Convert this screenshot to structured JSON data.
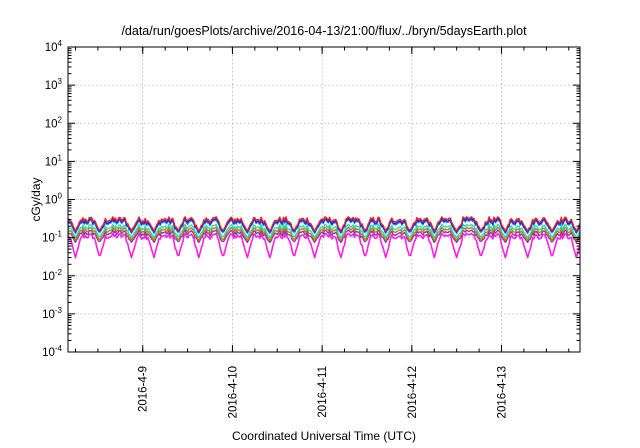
{
  "chart_data": {
    "type": "line",
    "title": "/data/run/goesPlots/archive/2016-04-13/21:00/flux/../bryn/5daysEarth.plot",
    "xlabel": "Coordinated Universal Time (UTC)",
    "ylabel": "cGy/day",
    "yscale": "log",
    "ylim": [
      0.0001,
      10000
    ],
    "xlim": [
      "2016-04-08 04:00",
      "2016-04-13 21:00"
    ],
    "grid": true,
    "ytick_labels": [
      {
        "base": "10",
        "exp": "-4",
        "value": 0.0001
      },
      {
        "base": "10",
        "exp": "-3",
        "value": 0.001
      },
      {
        "base": "10",
        "exp": "-2",
        "value": 0.01
      },
      {
        "base": "10",
        "exp": "-1",
        "value": 0.1
      },
      {
        "base": "10",
        "exp": "0",
        "value": 1
      },
      {
        "base": "10",
        "exp": "1",
        "value": 10
      },
      {
        "base": "10",
        "exp": "2",
        "value": 100
      },
      {
        "base": "10",
        "exp": "3",
        "value": 1000
      },
      {
        "base": "10",
        "exp": "4",
        "value": 10000
      }
    ],
    "xtick_labels": [
      {
        "label": "2016-4-9",
        "date": "2016-04-09 00:00"
      },
      {
        "label": "2016-4-10",
        "date": "2016-04-10 00:00"
      },
      {
        "label": "2016-4-11",
        "date": "2016-04-11 00:00"
      },
      {
        "label": "2016-4-12",
        "date": "2016-04-12 00:00"
      },
      {
        "label": "2016-4-13",
        "date": "2016-04-13 00:00"
      }
    ],
    "series": [
      {
        "color": "#e8202a",
        "base_value": 0.3,
        "dip_value": 0.15
      },
      {
        "color": "#2020e0",
        "base_value": 0.27,
        "dip_value": 0.14
      },
      {
        "color": "#1a98e6",
        "base_value": 0.25,
        "dip_value": 0.13
      },
      {
        "color": "#30d8a8",
        "base_value": 0.19,
        "dip_value": 0.1
      },
      {
        "color": "#c07820",
        "base_value": 0.16,
        "dip_value": 0.085
      },
      {
        "color": "#8040a0",
        "base_value": 0.135,
        "dip_value": 0.075
      },
      {
        "color": "#ff1ee6",
        "base_value": 0.11,
        "dip_value": 0.03
      }
    ],
    "dip_dates": [
      "2016-04-08 06:00",
      "2016-04-08 12:30",
      "2016-04-08 21:00",
      "2016-04-09 03:00",
      "2016-04-09 09:30",
      "2016-04-09 15:00",
      "2016-04-09 21:30",
      "2016-04-10 04:00",
      "2016-04-10 10:00",
      "2016-04-10 16:30",
      "2016-04-10 22:00",
      "2016-04-11 05:00",
      "2016-04-11 11:30",
      "2016-04-11 17:00",
      "2016-04-11 23:30",
      "2016-04-12 06:00",
      "2016-04-12 12:00",
      "2016-04-12 18:30",
      "2016-04-13 01:00",
      "2016-04-13 07:00",
      "2016-04-13 13:30",
      "2016-04-13 20:00"
    ]
  }
}
